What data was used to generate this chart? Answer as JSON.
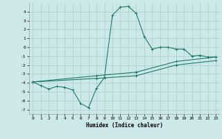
{
  "xlabel": "Humidex (Indice chaleur)",
  "background_color": "#cde8e8",
  "grid_color": "#aacccc",
  "line_color": "#1a7a6a",
  "xlim": [
    -0.5,
    23.5
  ],
  "ylim": [
    -7.5,
    5.0
  ],
  "xticks": [
    0,
    1,
    2,
    3,
    4,
    5,
    6,
    7,
    8,
    9,
    10,
    11,
    12,
    13,
    14,
    15,
    16,
    17,
    18,
    19,
    20,
    21,
    22,
    23
  ],
  "yticks": [
    -7,
    -6,
    -5,
    -4,
    -3,
    -2,
    -1,
    0,
    1,
    2,
    3,
    4
  ],
  "series1_x": [
    0,
    1,
    2,
    3,
    4,
    5,
    6,
    7,
    8,
    9,
    10,
    11,
    12,
    13,
    14,
    15,
    16,
    17,
    18,
    19,
    20,
    21,
    22,
    23
  ],
  "series1_y": [
    -3.9,
    -4.3,
    -4.7,
    -4.4,
    -4.5,
    -4.8,
    -6.3,
    -6.8,
    -4.6,
    -3.4,
    3.6,
    4.5,
    4.6,
    3.8,
    1.2,
    -0.2,
    0.0,
    0.0,
    -0.2,
    -0.2,
    -1.0,
    -0.9,
    -1.1,
    -1.1
  ],
  "series2_x": [
    0,
    8,
    13,
    18,
    23
  ],
  "series2_y": [
    -3.9,
    -3.2,
    -2.8,
    -1.6,
    -1.1
  ],
  "series3_x": [
    0,
    8,
    13,
    18,
    23
  ],
  "series3_y": [
    -3.9,
    -3.5,
    -3.2,
    -2.0,
    -1.5
  ],
  "xlabel_fontsize": 5.5,
  "tick_fontsize": 4.5
}
